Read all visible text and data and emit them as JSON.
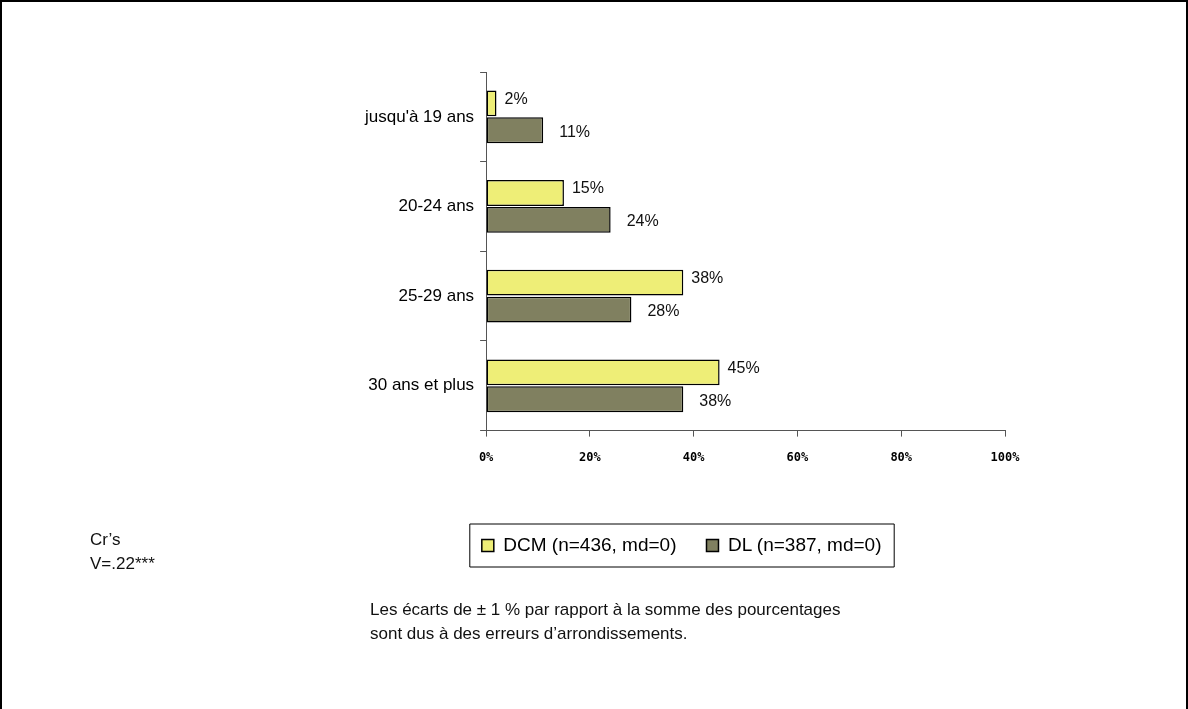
{
  "chart_data": {
    "type": "bar",
    "orientation": "horizontal",
    "categories": [
      "jusqu'à 19 ans",
      "20-24 ans",
      "25-29 ans",
      "30 ans et plus"
    ],
    "series": [
      {
        "name": "DCM (n=436, md=0)",
        "color": "#eeee77",
        "values": [
          2,
          15,
          38,
          45
        ],
        "value_labels": [
          "2%",
          "15%",
          "38%",
          "45%"
        ]
      },
      {
        "name": "DL (n=387, md=0)",
        "color": "#808060",
        "values": [
          11,
          24,
          28,
          38
        ],
        "value_labels": [
          "11%",
          "24%",
          "28%",
          "38%"
        ]
      }
    ],
    "xlim": [
      0,
      100
    ],
    "xticks": [
      {
        "value": 0,
        "label": "0%"
      },
      {
        "value": 20,
        "label": "20%"
      },
      {
        "value": 40,
        "label": "40%"
      },
      {
        "value": 60,
        "label": "60%"
      },
      {
        "value": 80,
        "label": "80%"
      },
      {
        "value": 100,
        "label": "100%"
      }
    ],
    "grid": false,
    "legend": "bottom",
    "annotations": [
      "Cr’s V=.22***",
      "Les écarts de ± 1 % par rapport à la somme des pourcentages sont dus à des erreurs d’arrondissements."
    ]
  }
}
